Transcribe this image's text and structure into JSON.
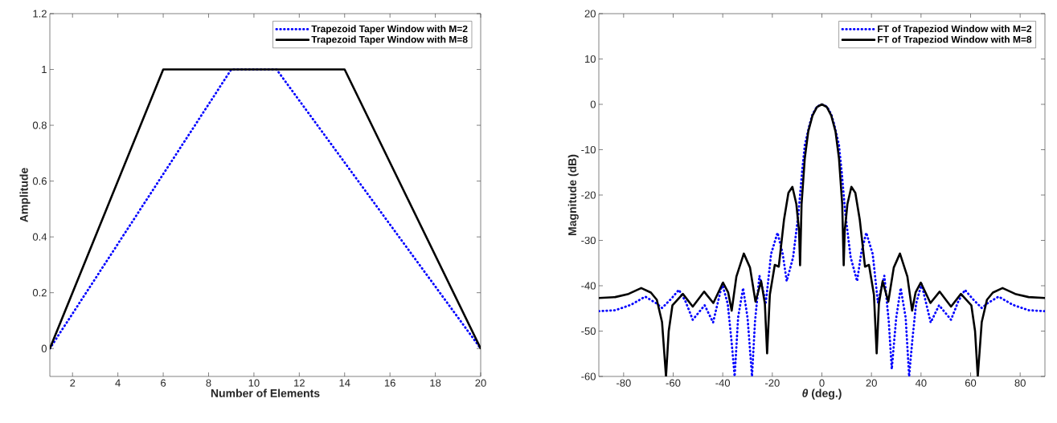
{
  "chart_data": [
    {
      "type": "line",
      "xlabel": "Number of Elements",
      "ylabel": "Amplitude",
      "xlim": [
        1,
        20
      ],
      "xticks": [
        2,
        4,
        6,
        8,
        10,
        12,
        14,
        16,
        18,
        20
      ],
      "ylim": [
        -0.1,
        1.2
      ],
      "yticks": [
        0,
        0.2,
        0.4,
        0.6,
        0.8,
        1,
        1.2
      ],
      "legend": "top right",
      "marker": "none",
      "series": [
        {
          "name": "Trapezoid Taper Window with M=2",
          "color": "#0000ff",
          "line_style": "dotted",
          "x": [
            1,
            9,
            11,
            20
          ],
          "values": [
            0,
            1,
            1,
            0
          ]
        },
        {
          "name": "Trapezoid Taper Window with M=8",
          "color": "#000000",
          "line_style": "solid",
          "x": [
            1,
            6,
            14,
            20
          ],
          "values": [
            0,
            1,
            1,
            0
          ]
        }
      ]
    },
    {
      "type": "line",
      "xlabel": "*θ* (deg.)",
      "ylabel": "Magnitude (dB)",
      "xlim": [
        -90,
        90
      ],
      "xticks": [
        -80,
        -60,
        -40,
        -20,
        0,
        20,
        40,
        60,
        80
      ],
      "ylim": [
        -60,
        20
      ],
      "yticks": [
        -60,
        -50,
        -40,
        -30,
        -20,
        -10,
        0,
        10,
        20
      ],
      "legend": "top right",
      "marker": "none",
      "series": [
        {
          "name": "FT of Trapeziod Window with M=2",
          "color": "#0000ff",
          "line_style": "dotted",
          "x": [
            -90,
            -83.4,
            -77,
            -71.3,
            -67,
            -64.5,
            -61,
            -57.7,
            -55,
            -52.1,
            -47.3,
            -43.9,
            -40.2,
            -38,
            -36.5,
            -35.2,
            -33.8,
            -31.8,
            -30,
            -28.2,
            -27,
            -25.2,
            -22.6,
            -20.5,
            -17.9,
            -15.8,
            -14.2,
            -11.6,
            -9.5,
            -8,
            -6.9,
            -5,
            -3.8,
            -2,
            0,
            2,
            3.8,
            5,
            6.9,
            8,
            9.5,
            11.6,
            14.2,
            15.8,
            17.9,
            20.5,
            22.6,
            25.2,
            27,
            28.2,
            30,
            31.8,
            33.8,
            35.2,
            36.5,
            38,
            40.2,
            43.9,
            47.3,
            52.1,
            55,
            57.7,
            61,
            64.5,
            67,
            71.3,
            77,
            83.4,
            90
          ],
          "values": [
            -45.6,
            -45.4,
            -44.2,
            -42.4,
            -43.8,
            -44.9,
            -43,
            -40.9,
            -43.5,
            -47.5,
            -44.3,
            -48.1,
            -39.6,
            -44,
            -52,
            -60,
            -47,
            -40.5,
            -47,
            -60,
            -48,
            -37.8,
            -43.7,
            -33,
            -28.3,
            -33,
            -39,
            -33.7,
            -24.3,
            -15,
            -9,
            -4.5,
            -2.2,
            -0.5,
            0,
            -0.5,
            -2.2,
            -4.5,
            -9,
            -15,
            -24.3,
            -33.7,
            -39,
            -33,
            -28.3,
            -33,
            -43.7,
            -37.8,
            -48,
            -58.4,
            -47,
            -40.5,
            -47,
            -60,
            -52,
            -44,
            -39.6,
            -48.1,
            -44.3,
            -47.5,
            -43.5,
            -40.9,
            -43,
            -44.9,
            -43.8,
            -42.4,
            -44.2,
            -45.4,
            -45.6
          ]
        },
        {
          "name": "FT of Trapeziod Window with M=8",
          "color": "#000000",
          "line_style": "solid",
          "x": [
            -90,
            -83.4,
            -78,
            -72.9,
            -69,
            -66.6,
            -64.5,
            -62.9,
            -61.8,
            -60.3,
            -56.1,
            -52.1,
            -47.5,
            -43.8,
            -39.9,
            -37.8,
            -36.4,
            -34.5,
            -31.5,
            -29,
            -26.8,
            -24.5,
            -23,
            -22.1,
            -21,
            -19,
            -17.4,
            -15.3,
            -13.5,
            -11.9,
            -10.3,
            -9.2,
            -8.8,
            -8.2,
            -6.9,
            -5.5,
            -3.8,
            -2,
            0,
            2,
            3.8,
            5.5,
            6.9,
            8.2,
            8.8,
            9.2,
            10.3,
            11.9,
            13.5,
            15.3,
            17.4,
            19,
            21,
            22.1,
            23,
            24.5,
            26.8,
            29,
            31.5,
            34.5,
            36.4,
            37.8,
            39.9,
            43.8,
            47.5,
            52.1,
            56.1,
            60.3,
            61.8,
            62.9,
            64.5,
            66.6,
            69,
            72.9,
            78,
            83.4,
            90
          ],
          "values": [
            -42.7,
            -42.5,
            -41.8,
            -40.5,
            -41.5,
            -43.1,
            -48,
            -60,
            -50,
            -44.3,
            -41.8,
            -44.6,
            -41.3,
            -43.8,
            -39.3,
            -41.5,
            -45.5,
            -38,
            -32.9,
            -36,
            -43.5,
            -39,
            -44,
            -54.9,
            -42,
            -35.4,
            -35.8,
            -25.5,
            -19.5,
            -18.2,
            -22,
            -28,
            -35.5,
            -22,
            -11.9,
            -6,
            -2.5,
            -0.6,
            0,
            -0.6,
            -2.5,
            -6,
            -11.9,
            -22,
            -35.5,
            -28,
            -22,
            -18.2,
            -19.5,
            -25.5,
            -35.8,
            -35.4,
            -42,
            -54.9,
            -44,
            -39,
            -43.5,
            -36,
            -32.9,
            -38,
            -45.5,
            -41.5,
            -39.3,
            -43.8,
            -41.3,
            -44.6,
            -41.8,
            -44.3,
            -50,
            -60,
            -48,
            -43.1,
            -41.5,
            -40.5,
            -41.8,
            -42.5,
            -42.7
          ]
        }
      ]
    }
  ]
}
